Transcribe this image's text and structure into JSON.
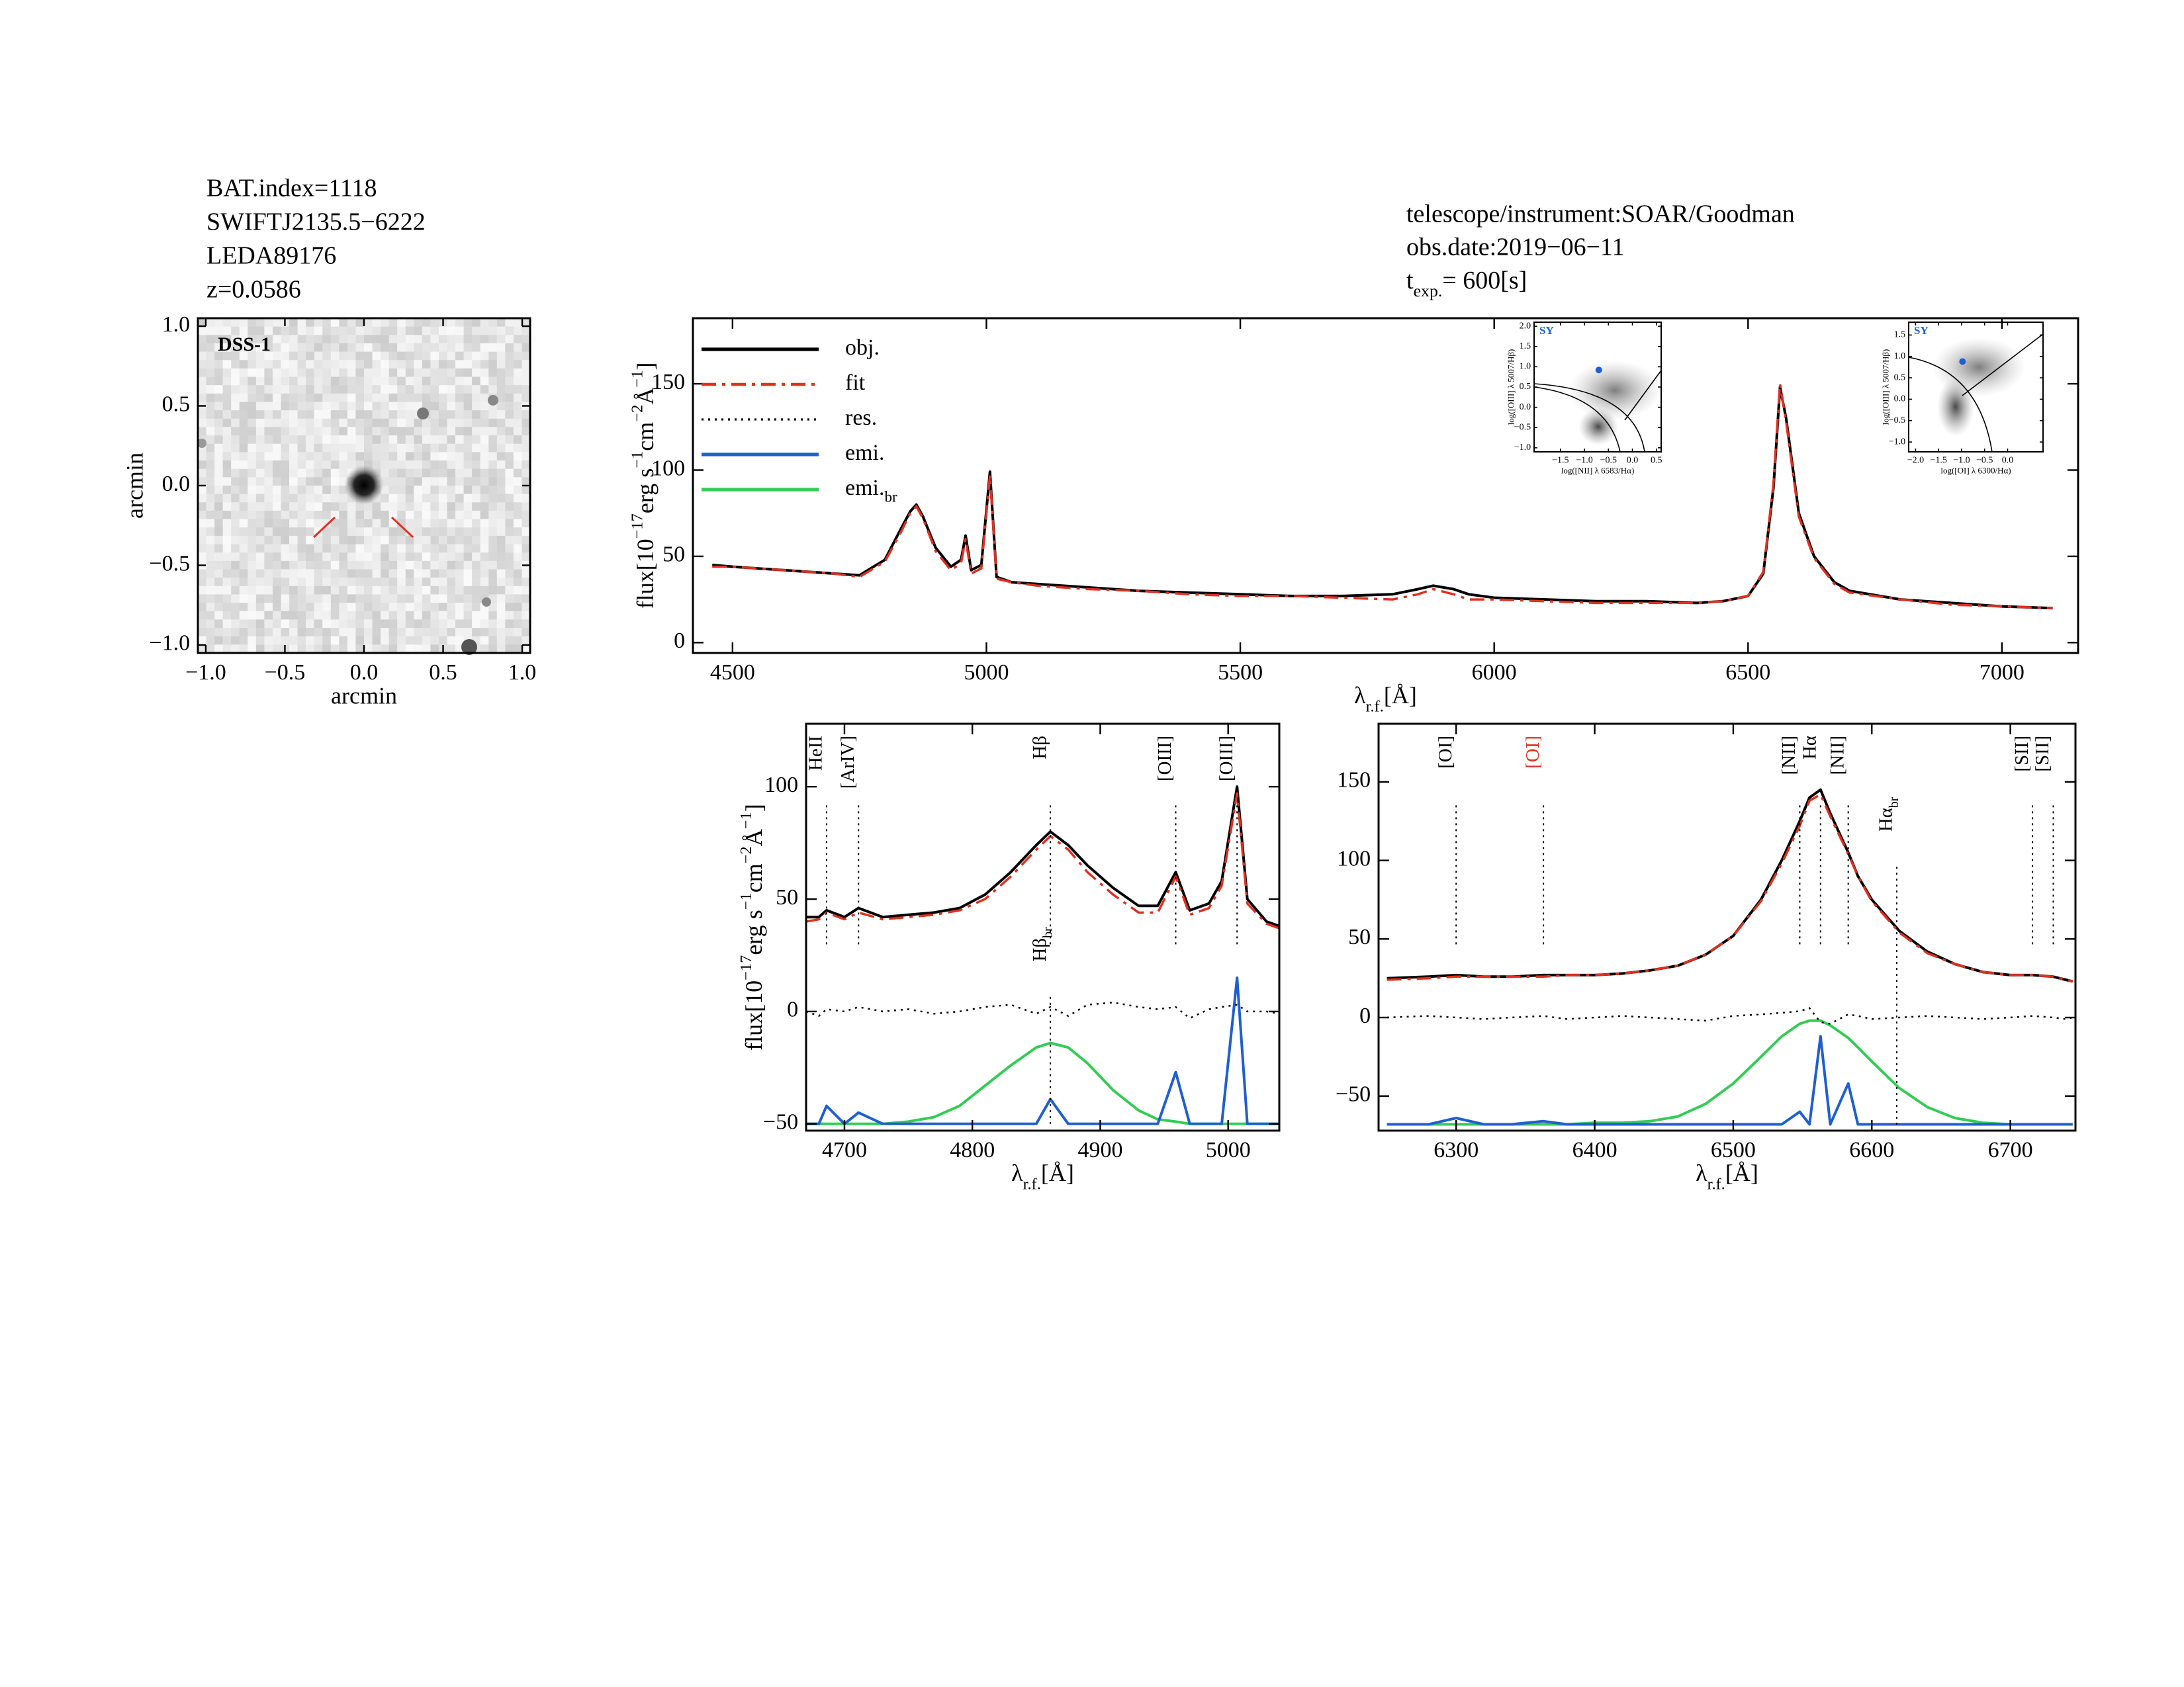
{
  "header": {
    "left": [
      "BAT.index=1118",
      "SWIFTJ2135.5−6222",
      "LEDA89176",
      "z=0.0586"
    ],
    "right": [
      "telescope/instrument:SOAR/Goodman",
      "obs.date:2019−06−11"
    ],
    "texp": [
      "t",
      "exp.",
      "=  600[s]"
    ]
  },
  "chart_data": [
    {
      "type": "image",
      "title": "DSS-1",
      "xlabel": "arcmin",
      "ylabel": "arcmin",
      "xlim": [
        -1.05,
        1.05
      ],
      "ylim": [
        -1.05,
        1.05
      ],
      "xticks": [
        {
          "value": -1,
          "label": "−1.0"
        },
        {
          "value": -0.5,
          "label": "−0.5"
        },
        {
          "value": 0,
          "label": "0.0"
        },
        {
          "value": 0.5,
          "label": "0.5"
        },
        {
          "value": 1,
          "label": "1.0"
        }
      ],
      "yticks": [
        {
          "value": -1,
          "label": "−1.0"
        },
        {
          "value": -0.5,
          "label": "−0.5"
        },
        {
          "value": 0,
          "label": "0.0"
        },
        {
          "value": 0.5,
          "label": "0.5"
        },
        {
          "value": 1,
          "label": "1.0"
        }
      ]
    },
    {
      "type": "line",
      "xlabel": [
        "λ",
        "r.f.",
        "[Å]"
      ],
      "ylabel": [
        "flux[10",
        "−17",
        "erg s",
        "−1",
        "cm",
        "−2",
        "Å",
        "−1",
        "]"
      ],
      "xlim": [
        4422,
        7150
      ],
      "ylim": [
        -6,
        188
      ],
      "xticks": [
        4500,
        5000,
        5500,
        6000,
        6500,
        7000
      ],
      "yticks": [
        0,
        50,
        100,
        150
      ],
      "x": [
        4460,
        4500,
        4550,
        4600,
        4650,
        4700,
        4750,
        4800,
        4830,
        4850,
        4862,
        4875,
        4900,
        4930,
        4950,
        4959,
        4970,
        4990,
        5007,
        5020,
        5050,
        5100,
        5200,
        5300,
        5400,
        5500,
        5600,
        5700,
        5800,
        5850,
        5880,
        5920,
        5950,
        6000,
        6100,
        6200,
        6300,
        6400,
        6450,
        6500,
        6530,
        6550,
        6563,
        6575,
        6600,
        6630,
        6670,
        6700,
        6800,
        6900,
        7000,
        7100
      ],
      "series": [
        {
          "color": "#000000",
          "linestyle": "solid",
          "values": [
            45,
            44,
            43,
            42,
            41,
            40,
            39,
            48,
            65,
            76,
            80,
            73,
            55,
            44,
            48,
            62,
            42,
            45,
            99,
            38,
            35,
            34,
            32,
            30,
            29,
            28,
            27,
            27,
            28,
            31,
            33,
            31,
            28,
            26,
            25,
            24,
            24,
            23,
            24,
            27,
            40,
            90,
            148,
            130,
            75,
            50,
            35,
            30,
            25,
            23,
            21,
            20
          ]
        },
        {
          "color": "#e03020",
          "linestyle": "dashdot",
          "values": [
            44,
            44,
            43,
            42,
            41,
            40,
            38,
            47,
            63,
            75,
            79,
            72,
            53,
            42,
            46,
            60,
            40,
            43,
            97,
            37,
            35,
            33,
            31,
            30,
            28,
            27,
            27,
            26,
            25,
            28,
            31,
            28,
            25,
            25,
            24,
            23,
            23,
            23,
            24,
            27,
            41,
            92,
            150,
            128,
            73,
            49,
            34,
            29,
            25,
            22,
            21,
            20
          ]
        }
      ],
      "legend": [
        {
          "name": "obj.",
          "color": "#000000",
          "linestyle": "solid"
        },
        {
          "name": "fit",
          "color": "#e03020",
          "linestyle": "dashdot"
        },
        {
          "name": "res.",
          "color": "#000000",
          "linestyle": "dotted"
        },
        {
          "name": "emi.",
          "color": "#1f5fd0",
          "linestyle": "solid"
        },
        {
          "name": [
            "emi.",
            "br"
          ],
          "color": "#33cc55",
          "linestyle": "solid"
        }
      ]
    },
    {
      "type": "scatter",
      "text": "SY",
      "color": "#1f5fd0",
      "xlabel": "log([NII] λ 6583/Hα)",
      "ylabel": "log([OIII] λ 5007/Hβ)",
      "xlim": [
        -2.05,
        0.6
      ],
      "ylim": [
        -1.1,
        2.1
      ],
      "xticks": [
        {
          "value": -1.5,
          "label": "−1.5"
        },
        {
          "value": -1,
          "label": "−1.0"
        },
        {
          "value": -0.5,
          "label": "−0.5"
        },
        {
          "value": 0,
          "label": "0.0"
        },
        {
          "value": 0.5,
          "label": "0.5"
        }
      ],
      "yticks": [
        {
          "value": -1,
          "label": "−1.0"
        },
        {
          "value": -0.5,
          "label": "−0.5"
        },
        {
          "value": 0,
          "label": "0.0"
        },
        {
          "value": 0.5,
          "label": "0.5"
        },
        {
          "value": 1,
          "label": "1.0"
        },
        {
          "value": 1.5,
          "label": "1.5"
        },
        {
          "value": 2,
          "label": "2.0"
        }
      ],
      "x": [
        -0.7
      ],
      "values": [
        0.92
      ]
    },
    {
      "type": "scatter",
      "text": "SY",
      "color": "#1f5fd0",
      "xlabel": "log([OI] λ 6300/Hα)",
      "ylabel": "log([OIII] λ 5007/Hβ)",
      "xlim": [
        -2.15,
        0.77
      ],
      "ylim": [
        -1.23,
        1.8
      ],
      "xticks": [
        {
          "value": -2,
          "label": "−2.0"
        },
        {
          "value": -1.5,
          "label": "−1.5"
        },
        {
          "value": -1,
          "label": "−1.0"
        },
        {
          "value": -0.5,
          "label": "−0.5"
        },
        {
          "value": 0,
          "label": "0.0"
        }
      ],
      "yticks": [
        {
          "value": -1,
          "label": "−1.0"
        },
        {
          "value": -0.5,
          "label": "−0.5"
        },
        {
          "value": 0,
          "label": "0.0"
        },
        {
          "value": 0.5,
          "label": "0.5"
        },
        {
          "value": 1,
          "label": "1.0"
        },
        {
          "value": 1.5,
          "label": "1.5"
        }
      ],
      "x": [
        -0.98
      ],
      "values": [
        0.88
      ]
    },
    {
      "type": "line",
      "xlabel": [
        "λ",
        "r.f.",
        "[Å]"
      ],
      "ylabel": [
        "flux[10",
        "−17",
        "erg s",
        "−1",
        "cm",
        "−2",
        "Å",
        "−1",
        "]"
      ],
      "xlim": [
        4670,
        5040
      ],
      "ylim": [
        -53,
        128
      ],
      "xticks": [
        4700,
        4800,
        4900,
        5000
      ],
      "yticks": [
        {
          "value": -50,
          "label": "−50"
        },
        0,
        50,
        100
      ],
      "x": [
        4670,
        4680,
        4686,
        4700,
        4711,
        4730,
        4750,
        4770,
        4790,
        4810,
        4830,
        4850,
        4861,
        4875,
        4890,
        4910,
        4930,
        4945,
        4959,
        4970,
        4985,
        4995,
        5007,
        5015,
        5030,
        5040
      ],
      "series": [
        {
          "color": "#33cc55",
          "linestyle": "solid",
          "values": [
            -50,
            -50,
            -50,
            -50,
            -50,
            -50,
            -49,
            -47,
            -42,
            -33,
            -24,
            -16,
            -14,
            -16,
            -23,
            -35,
            -44,
            -48,
            -49,
            -50,
            -50,
            -50,
            -50,
            -50,
            -50,
            -50
          ]
        },
        {
          "color": "#1f5fd0",
          "linestyle": "solid",
          "values": [
            -50,
            -50,
            -42,
            -50,
            -45,
            -50,
            -50,
            -50,
            -50,
            -50,
            -50,
            -50,
            -39,
            -50,
            -50,
            -50,
            -50,
            -50,
            -27,
            -50,
            -50,
            -50,
            15,
            -50,
            -50,
            -50
          ]
        },
        {
          "color": "#000000",
          "linestyle": "dotted",
          "values": [
            0,
            -2,
            1,
            0,
            2,
            0,
            1,
            -1,
            0,
            2,
            3,
            -1,
            2,
            -2,
            3,
            4,
            2,
            1,
            2,
            -3,
            1,
            2,
            3,
            0,
            0,
            -1
          ]
        },
        {
          "color": "#000000",
          "linestyle": "solid",
          "values": [
            42,
            42,
            45,
            42,
            46,
            42,
            43,
            44,
            46,
            52,
            62,
            74,
            80,
            74,
            65,
            55,
            47,
            47,
            62,
            45,
            48,
            58,
            100,
            50,
            40,
            38
          ]
        },
        {
          "color": "#e03020",
          "linestyle": "dashdot",
          "values": [
            40,
            41,
            44,
            41,
            44,
            41,
            42,
            43,
            45,
            50,
            60,
            72,
            78,
            72,
            62,
            52,
            44,
            44,
            60,
            43,
            46,
            56,
            97,
            48,
            39,
            37
          ]
        }
      ],
      "annotations": [
        {
          "x": 4686,
          "label": [
            "HeII"
          ]
        },
        {
          "x": 4711,
          "label": [
            "[ArIV]"
          ]
        },
        {
          "x": 4861,
          "label": [
            "Hβ"
          ]
        },
        {
          "x": 4959,
          "label": [
            "[OIII]"
          ]
        },
        {
          "x": 5007,
          "label": [
            "[OIII]"
          ]
        },
        {
          "x": 4861,
          "label": [
            "Hβ",
            "br"
          ]
        }
      ]
    },
    {
      "type": "line",
      "xlabel": [
        "λ",
        "r.f.",
        "[Å]"
      ],
      "xlim": [
        6244,
        6747
      ],
      "ylim": [
        -72,
        187
      ],
      "xticks": [
        6300,
        6400,
        6500,
        6600,
        6700
      ],
      "yticks": [
        {
          "value": -50,
          "label": "−50"
        },
        0,
        50,
        100,
        150
      ],
      "x": [
        6250,
        6280,
        6300,
        6320,
        6340,
        6363,
        6380,
        6400,
        6420,
        6440,
        6460,
        6480,
        6500,
        6520,
        6535,
        6548,
        6555,
        6563,
        6570,
        6583,
        6590,
        6600,
        6620,
        6640,
        6660,
        6680,
        6700,
        6716,
        6731,
        6740,
        6745
      ],
      "series": [
        {
          "color": "#33cc55",
          "linestyle": "solid",
          "values": [
            -68,
            -68,
            -68,
            -68,
            -68,
            -68,
            -68,
            -67,
            -67,
            -66,
            -63,
            -55,
            -42,
            -25,
            -12,
            -4,
            -2,
            -2,
            -5,
            -13,
            -19,
            -28,
            -45,
            -57,
            -64,
            -67,
            -68,
            -68,
            -68,
            -68,
            -68
          ]
        },
        {
          "color": "#1f5fd0",
          "linestyle": "solid",
          "values": [
            -68,
            -68,
            -64,
            -68,
            -68,
            -66,
            -68,
            -68,
            -68,
            -68,
            -68,
            -68,
            -68,
            -68,
            -68,
            -60,
            -68,
            -12,
            -68,
            -42,
            -68,
            -68,
            -68,
            -68,
            -68,
            -68,
            -68,
            -68,
            -68,
            -68,
            -68
          ]
        },
        {
          "color": "#000000",
          "linestyle": "dotted",
          "values": [
            0,
            1,
            0,
            -1,
            0,
            1,
            -1,
            0,
            1,
            0,
            -1,
            -2,
            1,
            2,
            3,
            4,
            6,
            -3,
            -4,
            2,
            1,
            -1,
            0,
            1,
            0,
            -1,
            0,
            1,
            0,
            -1,
            0
          ]
        },
        {
          "color": "#000000",
          "linestyle": "solid",
          "values": [
            25,
            26,
            27,
            26,
            26,
            27,
            27,
            27,
            28,
            30,
            33,
            40,
            52,
            75,
            100,
            125,
            140,
            145,
            130,
            105,
            90,
            75,
            55,
            42,
            34,
            29,
            27,
            27,
            26,
            24,
            23
          ]
        },
        {
          "color": "#e03020",
          "linestyle": "dashdot",
          "values": [
            24,
            25,
            26,
            26,
            26,
            26,
            27,
            27,
            28,
            30,
            33,
            40,
            52,
            74,
            98,
            122,
            138,
            142,
            128,
            104,
            90,
            74,
            54,
            41,
            34,
            29,
            27,
            27,
            26,
            24,
            23
          ]
        }
      ],
      "annotations": [
        {
          "x": 6300,
          "label": [
            "[OI]"
          ]
        },
        {
          "x": 6363,
          "label": [
            "[OI]"
          ],
          "color": "#e03020"
        },
        {
          "x": 6548,
          "label": [
            "[NII]"
          ]
        },
        {
          "x": 6563,
          "label": [
            "Hα"
          ]
        },
        {
          "x": 6583,
          "label": [
            "[NII]"
          ]
        },
        {
          "x": 6618,
          "label": [
            "Hα",
            "br"
          ]
        },
        {
          "x": 6716,
          "label": [
            "[SII]"
          ]
        },
        {
          "x": 6731,
          "label": [
            "[SII]"
          ]
        }
      ]
    }
  ]
}
